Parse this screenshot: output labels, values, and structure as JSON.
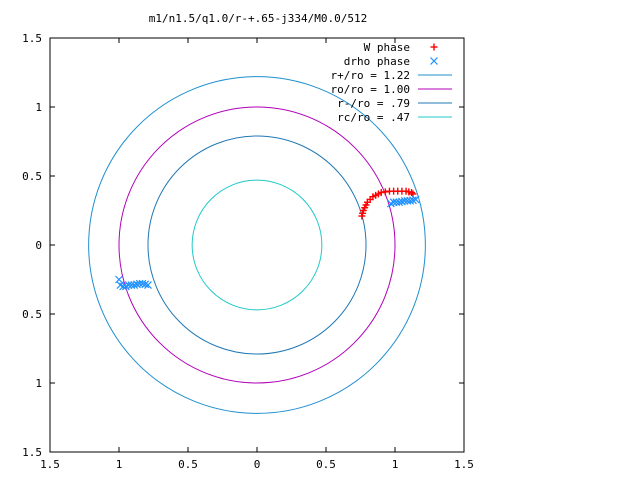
{
  "chart_data": {
    "type": "scatter",
    "title": "m1/n1.5/q1.0/r-+.65-j334/M0.0/512",
    "xlabel": "",
    "ylabel": "",
    "xlim": [
      -1.5,
      1.5
    ],
    "ylim": [
      -1.5,
      1.5
    ],
    "x_ticks": [
      "1.5",
      "1",
      "0.5",
      "0",
      "0.5",
      "1",
      "1.5"
    ],
    "y_ticks": [
      "1.5",
      "1",
      "0.5",
      "0",
      "0.5",
      "1",
      "1.5"
    ],
    "grid": false,
    "legend_position": "top-right",
    "circles": [
      {
        "name": "r+/ro = 1.22",
        "radius": 1.22,
        "color": "#1f8fcf"
      },
      {
        "name": "ro/ro = 1.00",
        "radius": 1.0,
        "color": "#b000b8"
      },
      {
        "name": "r-/ro = .79",
        "radius": 0.79,
        "color": "#1f78b4"
      },
      {
        "name": "rc/ro = .47",
        "radius": 0.47,
        "color": "#20c8c8"
      }
    ],
    "series": [
      {
        "name": "W phase",
        "marker": "plus",
        "color": "#ff0000",
        "points": [
          [
            0.76,
            0.21
          ],
          [
            0.765,
            0.23
          ],
          [
            0.77,
            0.25
          ],
          [
            0.78,
            0.27
          ],
          [
            0.79,
            0.29
          ],
          [
            0.8,
            0.31
          ],
          [
            0.82,
            0.33
          ],
          [
            0.84,
            0.35
          ],
          [
            0.86,
            0.36
          ],
          [
            0.88,
            0.37
          ],
          [
            0.9,
            0.38
          ],
          [
            0.93,
            0.385
          ],
          [
            0.96,
            0.39
          ],
          [
            0.99,
            0.39
          ],
          [
            1.02,
            0.39
          ],
          [
            1.05,
            0.39
          ],
          [
            1.08,
            0.39
          ],
          [
            1.1,
            0.385
          ],
          [
            1.12,
            0.38
          ],
          [
            1.13,
            0.37
          ]
        ]
      },
      {
        "name": "drho phase",
        "marker": "cross",
        "color": "#1e90ff",
        "points": [
          [
            0.97,
            0.3
          ],
          [
            0.99,
            0.31
          ],
          [
            1.01,
            0.31
          ],
          [
            1.03,
            0.31
          ],
          [
            1.05,
            0.315
          ],
          [
            1.07,
            0.32
          ],
          [
            1.09,
            0.32
          ],
          [
            1.11,
            0.32
          ],
          [
            1.13,
            0.325
          ],
          [
            1.15,
            0.33
          ],
          [
            -1.0,
            -0.25
          ],
          [
            -0.99,
            -0.29
          ],
          [
            -0.97,
            -0.3
          ],
          [
            -0.95,
            -0.3
          ],
          [
            -0.93,
            -0.29
          ],
          [
            -0.91,
            -0.29
          ],
          [
            -0.89,
            -0.29
          ],
          [
            -0.87,
            -0.285
          ],
          [
            -0.85,
            -0.28
          ],
          [
            -0.83,
            -0.28
          ],
          [
            -0.81,
            -0.285
          ],
          [
            -0.79,
            -0.29
          ]
        ]
      }
    ]
  }
}
